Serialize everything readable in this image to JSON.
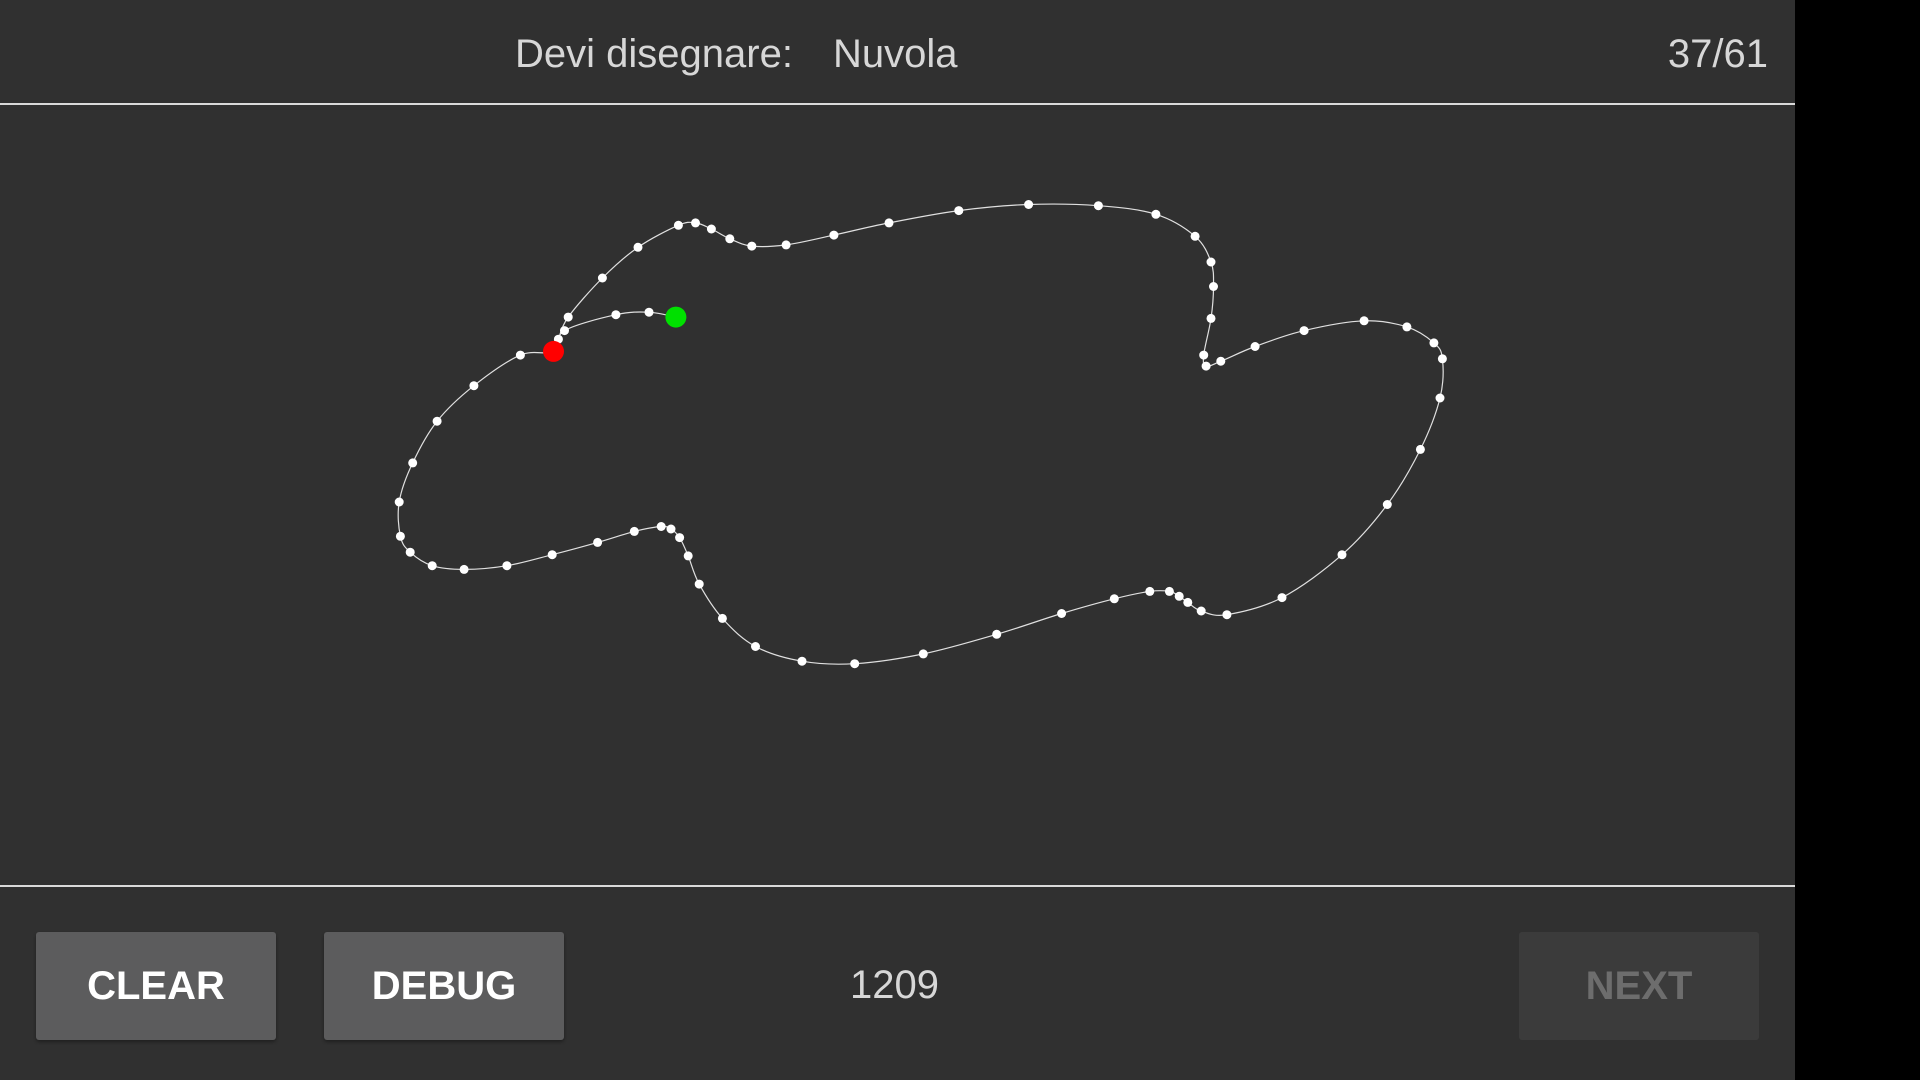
{
  "header": {
    "prompt_label": "Devi disegnare:",
    "target_word": "Nuvola",
    "progress": "37/61"
  },
  "footer": {
    "clear_label": "CLEAR",
    "debug_label": "DEBUG",
    "score": "1209",
    "next_label": "NEXT"
  },
  "colors": {
    "background": "#303030",
    "stroke": "#ffffff",
    "start_point": "#00e000",
    "end_point": "#ff0000",
    "button": "#5c5c5d",
    "button_disabled": "#3b3b3b"
  }
}
